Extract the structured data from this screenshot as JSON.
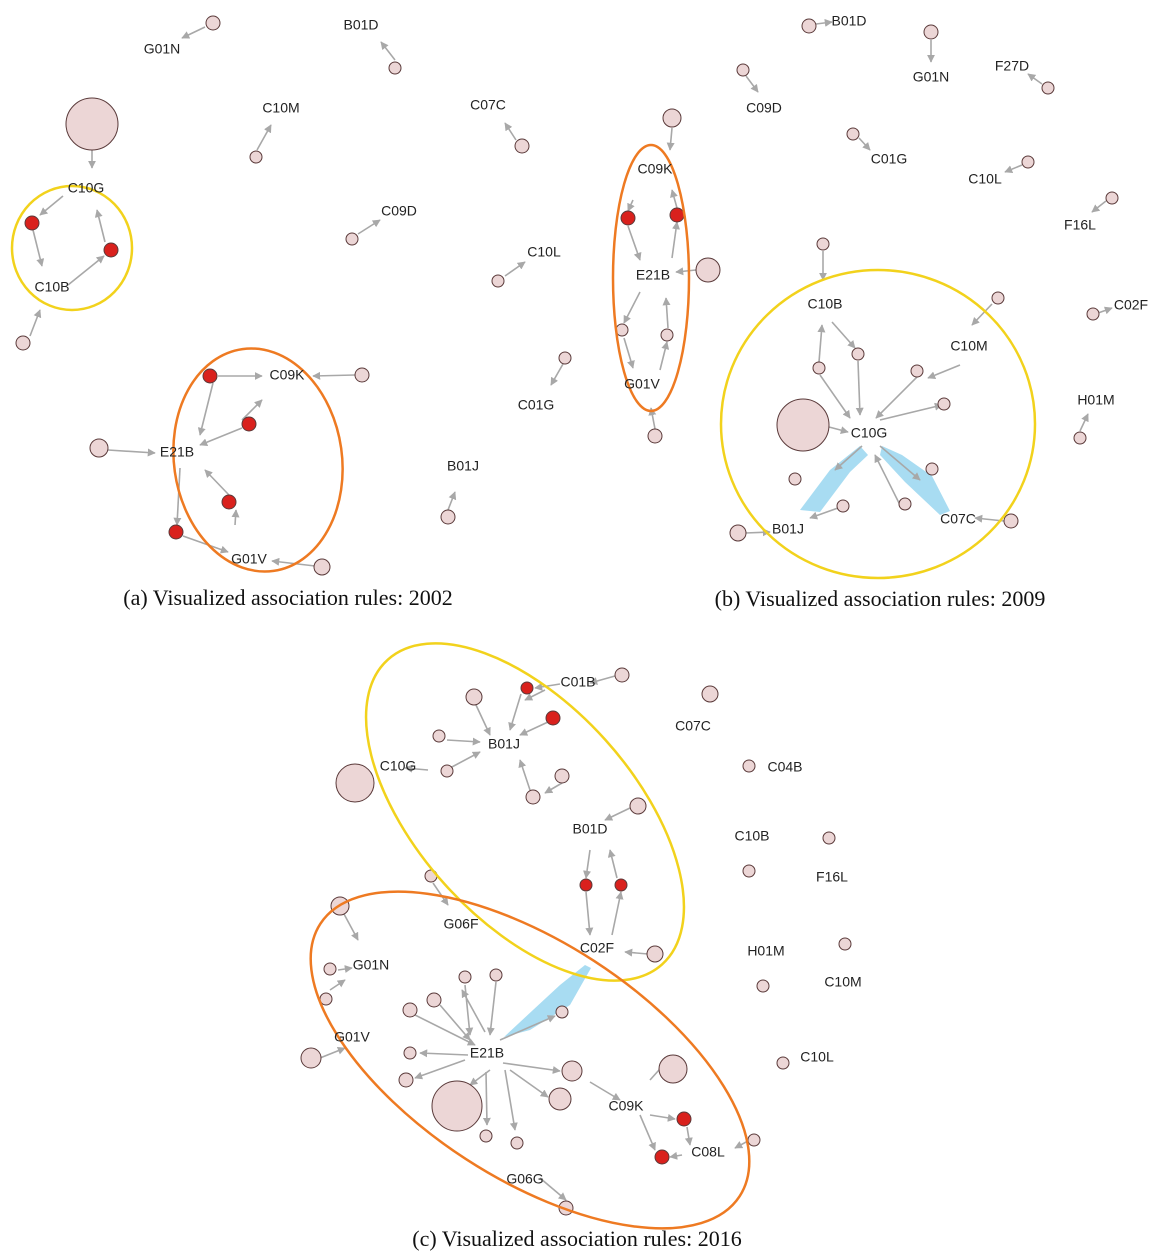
{
  "panels": [
    {
      "caption": "(a)  Visualized association rules: 2002",
      "labels": [
        "G01N",
        "B01D",
        "C10M",
        "C07C",
        "C10G",
        "C09D",
        "C10L",
        "C10B",
        "C09K",
        "E21B",
        "C01G",
        "B01J",
        "G01V"
      ]
    },
    {
      "caption": "(b)  Visualized association rules: 2009",
      "labels": [
        "B01D",
        "G01N",
        "F27D",
        "C09D",
        "C09K",
        "C01G",
        "C10L",
        "F16L",
        "E21B",
        "C10B",
        "C02F",
        "C10M",
        "G01V",
        "H01M",
        "C10G",
        "C07C",
        "B01J"
      ]
    },
    {
      "caption": "(c)  Visualized association rules: 2016",
      "labels": [
        "C01B",
        "C07C",
        "B01J",
        "C10G",
        "C04B",
        "B01D",
        "C10B",
        "F16L",
        "G06F",
        "C02F",
        "H01M",
        "G01N",
        "C10M",
        "G01V",
        "E21B",
        "C10L",
        "C09K",
        "C08L",
        "G06G"
      ]
    }
  ]
}
